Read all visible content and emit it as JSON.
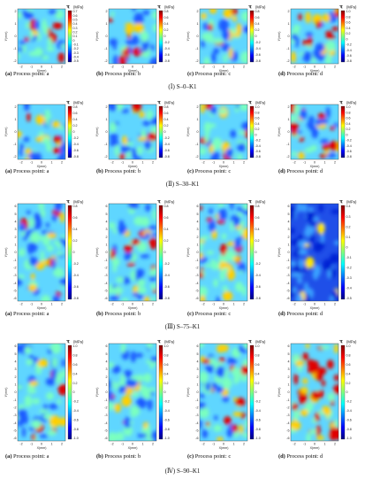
{
  "figure": {
    "rows": [
      {
        "label": "(Ⅰ) S–0–K1",
        "panels": [
          {
            "tag": "(a)",
            "caption": "Process point: a",
            "xlabel": "X(mm)",
            "ylabel": "Y(mm)",
            "xticks": [
              "-2",
              "-1",
              "0",
              "1",
              "2"
            ],
            "yticks": [
              "2",
              "1",
              "0",
              "-1",
              "-2"
            ],
            "unit": "(MPa)",
            "cbar_ticks": [
              "0.7",
              "0.6",
              "0.5",
              "0.4",
              "0.3",
              "0.2",
              "0.1",
              "0",
              "-0.1",
              "-0.2",
              "-0.3",
              "-0.4",
              "-0.5"
            ]
          },
          {
            "tag": "(b)",
            "caption": "Process point: b",
            "xlabel": "X(mm)",
            "ylabel": "Y(mm)",
            "xticks": [
              "-2",
              "-1",
              "0",
              "1",
              "2"
            ],
            "yticks": [
              "2",
              "1",
              "0",
              "-1",
              "-2"
            ],
            "unit": "(MPa)",
            "cbar_ticks": [
              "0.8",
              "0.6",
              "0.4",
              "0.2",
              "0",
              "-0.2",
              "-0.4",
              "-0.6",
              "-0.8"
            ]
          },
          {
            "tag": "(c)",
            "caption": "Process point: c",
            "xlabel": "X(mm)",
            "ylabel": "Y(mm)",
            "xticks": [
              "-2",
              "-1",
              "0",
              "1",
              "2"
            ],
            "yticks": [
              "2",
              "1",
              "0",
              "-1",
              "-2"
            ],
            "unit": "(MPa)",
            "cbar_ticks": [
              "0.8",
              "0.6",
              "0.4",
              "0.2",
              "0",
              "-0.2",
              "-0.4",
              "-0.6",
              "-0.8"
            ]
          },
          {
            "tag": "(d)",
            "caption": "Process point: d",
            "xlabel": "X(mm)",
            "ylabel": "Y(mm)",
            "xticks": [
              "-2",
              "-1",
              "0",
              "1",
              "2"
            ],
            "yticks": [
              "2",
              "1",
              "0",
              "-1",
              "-2"
            ],
            "unit": "(MPa)",
            "cbar_ticks": [
              "1.0",
              "0.8",
              "0.6",
              "0.4",
              "0.2",
              "0",
              "-0.2",
              "-0.4",
              "-0.6",
              "-0.8"
            ]
          }
        ]
      },
      {
        "label": "(Ⅱ) S–30–K1",
        "panels": [
          {
            "tag": "(a)",
            "caption": "Process point: a",
            "xlabel": "X(mm)",
            "ylabel": "Y(mm)",
            "xticks": [
              "-2",
              "-1",
              "0",
              "1",
              "2"
            ],
            "yticks": [
              "2",
              "1",
              "0",
              "-1",
              "-2"
            ],
            "unit": "(MPa)",
            "cbar_ticks": [
              "0.8",
              "0.6",
              "0.4",
              "0.2",
              "0",
              "-0.2",
              "-0.4",
              "-0.6",
              "-0.8"
            ]
          },
          {
            "tag": "(b)",
            "caption": "Process point: b",
            "xlabel": "X(mm)",
            "ylabel": "Y(mm)",
            "xticks": [
              "-2",
              "-1",
              "0",
              "1",
              "2"
            ],
            "yticks": [
              "2",
              "1",
              "0",
              "-1",
              "-2"
            ],
            "unit": "(MPa)",
            "cbar_ticks": [
              "0.8",
              "0.6",
              "0.4",
              "0.2",
              "0",
              "-0.2",
              "-0.4",
              "-0.6",
              "-0.8"
            ]
          },
          {
            "tag": "(c)",
            "caption": "Process point: c",
            "xlabel": "X(mm)",
            "ylabel": "Y(mm)",
            "xticks": [
              "-2",
              "-1",
              "0",
              "1",
              "2"
            ],
            "yticks": [
              "2",
              "1",
              "0",
              "-1",
              "-2"
            ],
            "unit": "(MPa)",
            "cbar_ticks": [
              "1.0",
              "0.8",
              "0.6",
              "0.4",
              "0.2",
              "0",
              "-0.2",
              "-0.4",
              "-0.6",
              "-0.8"
            ]
          },
          {
            "tag": "(d)",
            "caption": "Process point: d",
            "xlabel": "X(mm)",
            "ylabel": "Y(mm)",
            "xticks": [
              "-2",
              "-1",
              "0",
              "1",
              "2"
            ],
            "yticks": [
              "2",
              "1",
              "0",
              "-1",
              "-2"
            ],
            "unit": "(MPa)",
            "cbar_ticks": [
              "1.0",
              "0.8",
              "0.6",
              "0.4",
              "0.2",
              "0",
              "-0.2",
              "-0.4",
              "-0.6",
              "-0.8"
            ]
          }
        ]
      },
      {
        "label": "(Ⅲ) S–75–K1",
        "panels": [
          {
            "tag": "(a)",
            "caption": "Process point: a",
            "xlabel": "X(mm)",
            "ylabel": "Y(mm)",
            "xticks": [
              "-2",
              "-1",
              "0",
              "1",
              "2"
            ],
            "yticks": [
              "6",
              "5",
              "4",
              "3",
              "2",
              "1",
              "0",
              "-1",
              "-2",
              "-3",
              "-4",
              "-5",
              "-6"
            ],
            "unit": "(MPa)",
            "cbar_ticks": [
              "0.8",
              "0.6",
              "0.4",
              "0.2",
              "0",
              "-0.2",
              "-0.4",
              "-0.6",
              "-0.8"
            ]
          },
          {
            "tag": "(b)",
            "caption": "Process point: b",
            "xlabel": "X(mm)",
            "ylabel": "Y(mm)",
            "xticks": [
              "-2",
              "-1",
              "0",
              "1",
              "2"
            ],
            "yticks": [
              "6",
              "5",
              "4",
              "3",
              "2",
              "1",
              "0",
              "-1",
              "-2",
              "-3",
              "-4",
              "-5",
              "-6"
            ],
            "unit": "(MPa)",
            "cbar_ticks": [
              "0.8",
              "0.6",
              "0.4",
              "0.2",
              "0",
              "-0.2",
              "-0.4",
              "-0.6",
              "-0.8"
            ]
          },
          {
            "tag": "(c)",
            "caption": "Process point: c",
            "xlabel": "X(mm)",
            "ylabel": "Y(mm)",
            "xticks": [
              "-2",
              "-1",
              "0",
              "1",
              "2"
            ],
            "yticks": [
              "6",
              "5",
              "4",
              "3",
              "2",
              "1",
              "0",
              "-1",
              "-2",
              "-3",
              "-4",
              "-5",
              "-6"
            ],
            "unit": "(MPa)",
            "cbar_ticks": [
              "0.8",
              "0.6",
              "0.4",
              "0.2",
              "0",
              "-0.2",
              "-0.4",
              "-0.6",
              "-0.8"
            ]
          },
          {
            "tag": "(d)",
            "caption": "Process point: d",
            "xlabel": "X(mm)",
            "ylabel": "Y(mm)",
            "xticks": [
              "-2",
              "-1",
              "0",
              "1",
              "2"
            ],
            "yticks": [
              "6",
              "5",
              "4",
              "3",
              "2",
              "1",
              "0",
              "-1",
              "-2",
              "-3",
              "-4",
              "-5",
              "-6"
            ],
            "unit": "(MPa)",
            "cbar_ticks": [
              "0.4",
              "0.3",
              "0.2",
              "0.1",
              "0",
              "-0.1",
              "-0.2",
              "-0.3",
              "-0.4",
              "-0.5"
            ]
          }
        ]
      },
      {
        "label": "(Ⅳ) S–90–K1",
        "panels": [
          {
            "tag": "(a)",
            "caption": "Process point: a",
            "xlabel": "X(mm)",
            "ylabel": "Y(mm)",
            "xticks": [
              "-2",
              "-1",
              "0",
              "1",
              "2"
            ],
            "yticks": [
              "6",
              "5",
              "4",
              "3",
              "2",
              "1",
              "0",
              "-1",
              "-2",
              "-3",
              "-4",
              "-5",
              "-6"
            ],
            "unit": "(MPa)",
            "cbar_ticks": [
              "1.0",
              "0.8",
              "0.6",
              "0.4",
              "0.2",
              "0",
              "-0.2",
              "-0.4",
              "-0.6",
              "-0.8",
              "-1.0"
            ]
          },
          {
            "tag": "(b)",
            "caption": "Process point: b",
            "xlabel": "X(mm)",
            "ylabel": "Y(mm)",
            "xticks": [
              "-2",
              "-1",
              "0",
              "1",
              "2"
            ],
            "yticks": [
              "6",
              "5",
              "4",
              "3",
              "2",
              "1",
              "0",
              "-1",
              "-2",
              "-3",
              "-4",
              "-5",
              "-6"
            ],
            "unit": "(MPa)",
            "cbar_ticks": [
              "1.0",
              "0.8",
              "0.6",
              "0.4",
              "0.2",
              "0",
              "-0.2",
              "-0.4",
              "-0.6",
              "-0.8",
              "-1.0"
            ]
          },
          {
            "tag": "(c)",
            "caption": "Process point: c",
            "xlabel": "X(mm)",
            "ylabel": "Y(mm)",
            "xticks": [
              "-2",
              "-1",
              "0",
              "1",
              "2"
            ],
            "yticks": [
              "6",
              "5",
              "4",
              "3",
              "2",
              "1",
              "0",
              "-1",
              "-2",
              "-3",
              "-4",
              "-5",
              "-6"
            ],
            "unit": "(MPa)",
            "cbar_ticks": [
              "1.0",
              "0.8",
              "0.6",
              "0.4",
              "0.2",
              "0",
              "-0.2",
              "-0.4",
              "-0.6",
              "-0.8",
              "-1.0"
            ]
          },
          {
            "tag": "(d)",
            "caption": "Process point: d",
            "xlabel": "X(mm)",
            "ylabel": "Y(mm)",
            "xticks": [
              "-2",
              "-1",
              "0",
              "1",
              "2"
            ],
            "yticks": [
              "6",
              "5",
              "4",
              "3",
              "2",
              "1",
              "0",
              "-1",
              "-2",
              "-3",
              "-4",
              "-5",
              "-6"
            ],
            "unit": "(MPa)",
            "cbar_ticks": [
              "1.0",
              "0.8",
              "0.6",
              "0.4",
              "0.2",
              "0",
              "-0.2",
              "-0.4",
              "-0.6",
              "-0.8",
              "-1.0"
            ]
          }
        ]
      }
    ],
    "colormap": [
      "#00007f",
      "#0000ff",
      "#007fff",
      "#00ffff",
      "#7fff7f",
      "#ffff00",
      "#ff7f00",
      "#ff0000",
      "#7f0000"
    ],
    "symbol": "τ"
  }
}
